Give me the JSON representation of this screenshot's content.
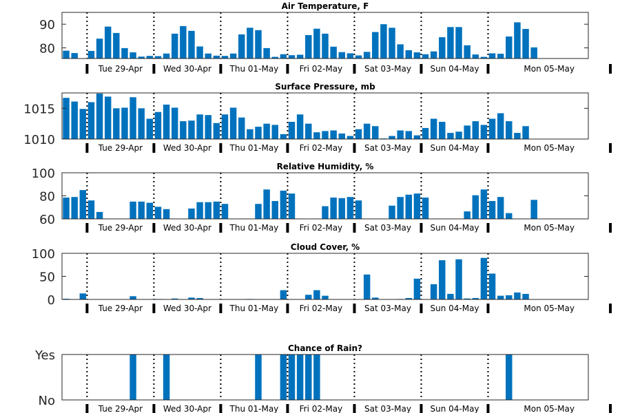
{
  "colors": {
    "bar": "#0072bd",
    "axis": "#262626",
    "divider": "#000000"
  },
  "chart_data": [
    {
      "type": "bar",
      "title": "Air Temperature, F",
      "hours": [
        0,
        1,
        2,
        3,
        4,
        5,
        6,
        7,
        8,
        9,
        10,
        11,
        12,
        13,
        14,
        15,
        16,
        17,
        18,
        19,
        20,
        21,
        22,
        23,
        24,
        25,
        26,
        27,
        28,
        29,
        30,
        31,
        32,
        33,
        34,
        35,
        36,
        37,
        38,
        39,
        40,
        41,
        42,
        43,
        44,
        45,
        46,
        47,
        48,
        49,
        50,
        51,
        52,
        53,
        54,
        55,
        56,
        57,
        58,
        59,
        60,
        61,
        62
      ],
      "values": [
        78.8,
        77.8,
        75.5,
        78.7,
        83.9,
        89,
        86.3,
        79.9,
        78.1,
        76.3,
        76.6,
        76.5,
        77.6,
        86,
        89.2,
        87.2,
        80.6,
        77.6,
        76.7,
        76.6,
        77.6,
        85.7,
        88.5,
        87.5,
        79.9,
        76.2,
        77.3,
        76.9,
        77.1,
        85.4,
        88.1,
        86,
        80.5,
        78.2,
        77.7,
        76.8,
        78.3,
        86.7,
        90,
        88.5,
        81.5,
        79,
        78.1,
        77.3,
        78.5,
        84.5,
        88.8,
        88.8,
        81.1,
        77.2,
        76.2,
        77.7,
        77.5,
        84.8,
        90.8,
        88,
        80.2,
        75.6,
        75.6,
        75.6,
        75.6,
        75.6,
        75.6
      ],
      "ylim": [
        75.5,
        95
      ],
      "yticks": [
        80,
        90
      ],
      "ytick_labels": [
        "80",
        "90"
      ]
    },
    {
      "type": "bar",
      "title": "Surface Pressure, mb",
      "hours": [
        0,
        1,
        2,
        3,
        4,
        5,
        6,
        7,
        8,
        9,
        10,
        11,
        12,
        13,
        14,
        15,
        16,
        17,
        18,
        19,
        20,
        21,
        22,
        23,
        24,
        25,
        26,
        27,
        28,
        29,
        30,
        31,
        32,
        33,
        34,
        35,
        36,
        37,
        38,
        39,
        40,
        41,
        42,
        43,
        44,
        45,
        46,
        47,
        48,
        49,
        50,
        51,
        52,
        53,
        54,
        55,
        56,
        57,
        58,
        59,
        60,
        61,
        62
      ],
      "values": [
        1016.7,
        1016.1,
        1014.9,
        1016,
        1017.4,
        1016.9,
        1015,
        1015.1,
        1016.8,
        1015,
        1013.3,
        1014.4,
        1015.6,
        1015.1,
        1012.9,
        1013,
        1014,
        1013.9,
        1012.6,
        1014,
        1015.1,
        1013.5,
        1011.6,
        1012,
        1012.5,
        1012.3,
        1010.8,
        1012.8,
        1014,
        1012.5,
        1011.1,
        1011.3,
        1011.4,
        1010.9,
        1010.5,
        1011.6,
        1012.5,
        1012.1,
        1010.1,
        1010.5,
        1011.4,
        1011.3,
        1010.6,
        1011.8,
        1013.3,
        1012.8,
        1011,
        1011.2,
        1012.2,
        1012.9,
        1012.3,
        1013.3,
        1014.2,
        1012.9,
        1011,
        1012.1,
        1010,
        1010,
        1010,
        1010,
        1010,
        1010,
        1010
      ],
      "ylim": [
        1010,
        1017.5
      ],
      "yticks": [
        1010,
        1015
      ],
      "ytick_labels": [
        "1010",
        "1015"
      ]
    },
    {
      "type": "bar",
      "title": "Relative Humidity, %",
      "hours": [
        0,
        1,
        2,
        3,
        4,
        5,
        6,
        7,
        8,
        9,
        10,
        11,
        12,
        13,
        14,
        15,
        16,
        17,
        18,
        19,
        20,
        21,
        22,
        23,
        24,
        25,
        26,
        27,
        28,
        29,
        30,
        31,
        32,
        33,
        34,
        35,
        36,
        37,
        38,
        39,
        40,
        41,
        42,
        43,
        44,
        45,
        46,
        47,
        48,
        49,
        50,
        51,
        52,
        53,
        54,
        55,
        56,
        57,
        58,
        59,
        60,
        61,
        62
      ],
      "values": [
        78.5,
        79,
        85,
        76,
        66,
        60,
        60,
        60,
        75,
        75,
        74,
        70.5,
        68.5,
        60,
        60,
        69,
        74.5,
        74.5,
        75,
        73,
        60,
        60,
        60,
        73,
        85.5,
        75.5,
        84.5,
        82,
        60,
        60,
        60,
        71,
        78.5,
        78,
        79,
        76,
        60,
        60,
        60,
        71.5,
        79,
        81,
        82,
        78.5,
        60,
        60,
        60,
        60,
        66.5,
        80.5,
        85.5,
        75.5,
        79,
        65,
        60,
        60,
        76.5,
        60,
        60,
        60,
        60,
        60,
        60
      ],
      "ylim": [
        60,
        100
      ],
      "yticks": [
        60,
        80,
        100
      ],
      "ytick_labels": [
        "60",
        "80",
        "100"
      ]
    },
    {
      "type": "bar",
      "title": "Cloud Cover, %",
      "hours": [
        0,
        1,
        2,
        3,
        4,
        5,
        6,
        7,
        8,
        9,
        10,
        11,
        12,
        13,
        14,
        15,
        16,
        17,
        18,
        19,
        20,
        21,
        22,
        23,
        24,
        25,
        26,
        27,
        28,
        29,
        30,
        31,
        32,
        33,
        34,
        35,
        36,
        37,
        38,
        39,
        40,
        41,
        42,
        43,
        44,
        45,
        46,
        47,
        48,
        49,
        50,
        51,
        52,
        53,
        54,
        55,
        56,
        57,
        58,
        59,
        60,
        61,
        62
      ],
      "values": [
        1.5,
        0,
        13,
        0,
        0,
        0,
        0,
        0,
        7,
        0,
        0,
        1,
        0,
        2,
        0,
        4,
        3,
        0,
        0,
        0,
        0,
        0,
        1,
        0,
        0,
        0,
        20,
        0,
        0,
        10,
        20,
        8,
        0,
        0,
        0,
        0,
        54,
        4,
        0,
        0,
        1,
        3,
        45,
        0,
        33,
        85,
        12,
        87,
        2,
        3,
        90,
        56,
        8,
        9,
        15,
        12,
        0,
        0,
        0,
        0,
        0,
        0,
        0
      ],
      "ylim": [
        0,
        100
      ],
      "yticks": [
        0,
        50,
        100
      ],
      "ytick_labels": [
        "0",
        "50",
        "100"
      ]
    },
    {
      "type": "bar",
      "title": "Chance of Rain?",
      "hours": [
        0,
        1,
        2,
        3,
        4,
        5,
        6,
        7,
        8,
        9,
        10,
        11,
        12,
        13,
        14,
        15,
        16,
        17,
        18,
        19,
        20,
        21,
        22,
        23,
        24,
        25,
        26,
        27,
        28,
        29,
        30,
        31,
        32,
        33,
        34,
        35,
        36,
        37,
        38,
        39,
        40,
        41,
        42,
        43,
        44,
        45,
        46,
        47,
        48,
        49,
        50,
        51,
        52,
        53,
        54,
        55,
        56,
        57,
        58,
        59,
        60,
        61,
        62
      ],
      "values": [
        0,
        0,
        0,
        0,
        0,
        0,
        0,
        0,
        1,
        0,
        0,
        0,
        1,
        0,
        0,
        0,
        0,
        0,
        0,
        0,
        0,
        0,
        0,
        1,
        0,
        0,
        1,
        1,
        1,
        1,
        1,
        0,
        0,
        0,
        0,
        0,
        0,
        0,
        0,
        0,
        0,
        0,
        0,
        0,
        0,
        0,
        0,
        0,
        0,
        0,
        0,
        0,
        0,
        1,
        0,
        0,
        0,
        0,
        0,
        0,
        0,
        0,
        0
      ],
      "ylim": [
        0,
        1
      ],
      "yticks": [
        0,
        1
      ],
      "ytick_labels": [
        "No",
        "Yes"
      ]
    }
  ],
  "x_axis": {
    "hour_range": [
      -0.5,
      62.5
    ],
    "day_boundaries": [
      2.5,
      10.5,
      18.5,
      26.5,
      34.5,
      42.5,
      50.5
    ],
    "day_labels": [
      "Tue 29-Apr",
      "Wed 30-Apr",
      "Thu 01-May",
      "Fri 02-May",
      "Sat 03-May",
      "Sun 04-May",
      "Mon 05-May"
    ]
  }
}
